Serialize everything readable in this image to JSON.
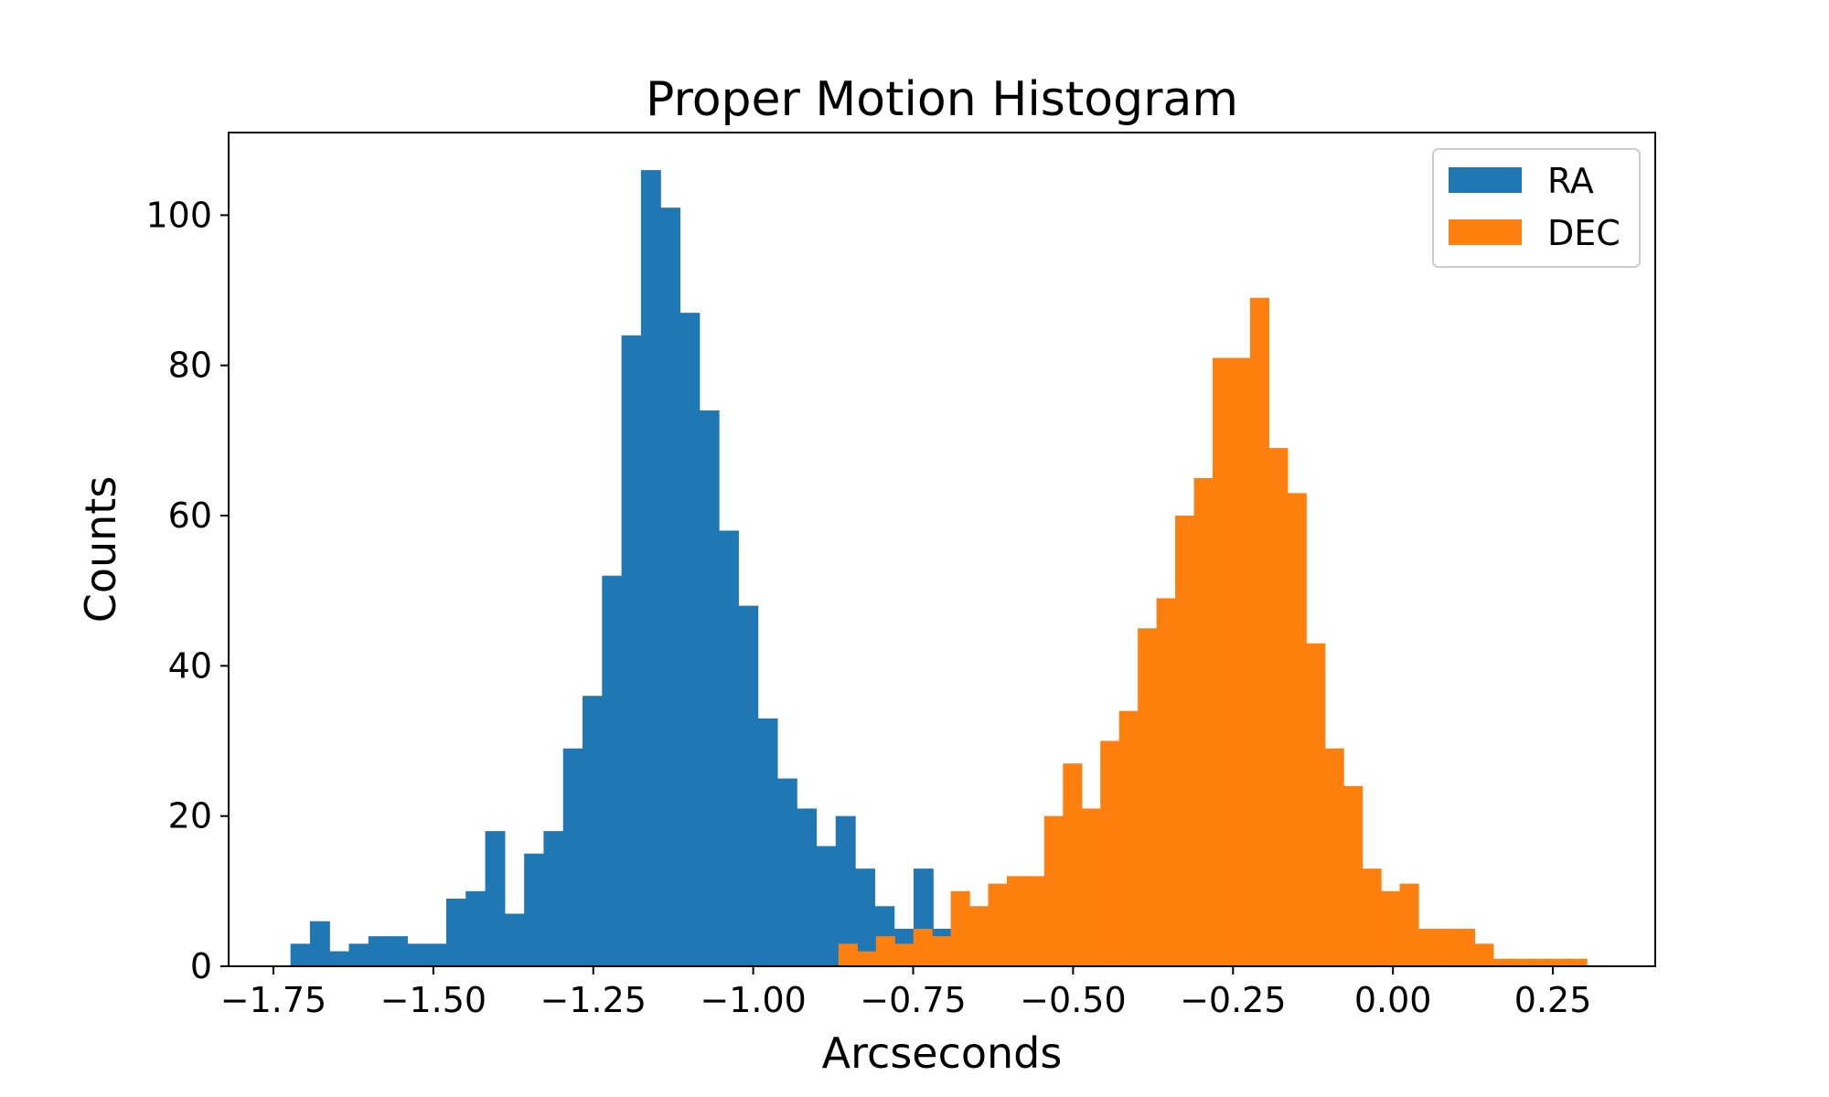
{
  "chart_data": {
    "type": "histogram",
    "title": "Proper Motion Histogram",
    "xlabel": "Arcseconds",
    "ylabel": "Counts",
    "xlim": [
      -1.82,
      0.41
    ],
    "ylim": [
      0,
      111
    ],
    "xticks": [
      -1.75,
      -1.5,
      -1.25,
      -1.0,
      -0.75,
      -0.5,
      -0.25,
      0.0,
      0.25
    ],
    "xtick_labels": [
      "−1.75",
      "−1.50",
      "−1.25",
      "−1.00",
      "−0.75",
      "−0.50",
      "−0.25",
      "0.00",
      "0.25"
    ],
    "yticks": [
      0,
      20,
      40,
      60,
      80,
      100
    ],
    "ytick_labels": [
      "0",
      "20",
      "40",
      "60",
      "80",
      "100"
    ],
    "legend_position": "top-right",
    "series": [
      {
        "name": "RA",
        "color": "#1f77b4",
        "bin_start": -1.7233,
        "bin_width": 0.030435,
        "counts": [
          3,
          6,
          2,
          3,
          4,
          4,
          3,
          3,
          9,
          10,
          18,
          7,
          15,
          18,
          29,
          36,
          52,
          84,
          106,
          101,
          87,
          74,
          58,
          48,
          33,
          25,
          21,
          16,
          20,
          13,
          8,
          5,
          13,
          5
        ]
      },
      {
        "name": "DEC",
        "color": "#ff7f0e",
        "bin_start": -0.8667,
        "bin_width": 0.02924,
        "counts": [
          3,
          2,
          4,
          3,
          5,
          4,
          10,
          8,
          11,
          12,
          12,
          20,
          27,
          21,
          30,
          34,
          45,
          49,
          60,
          65,
          81,
          81,
          89,
          69,
          63,
          43,
          29,
          24,
          13,
          10,
          11,
          5,
          5,
          5,
          3,
          1,
          1,
          1,
          1,
          1
        ]
      }
    ]
  }
}
